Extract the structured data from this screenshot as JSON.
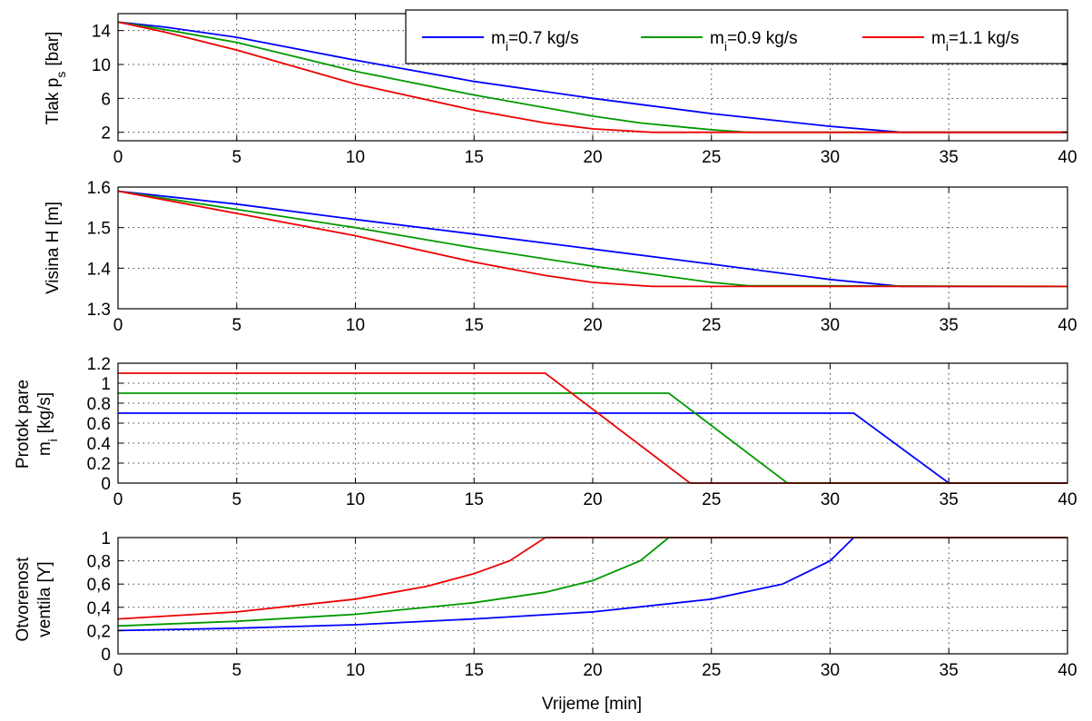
{
  "colors": {
    "blue": "#0000ff",
    "green": "#009900",
    "red": "#ee0000"
  },
  "chart_data": [
    {
      "type": "line",
      "ylabel": "Tlak p",
      "ylabel_sub": "s",
      "ylabel_unit": "[bar]",
      "xlim": [
        0,
        40
      ],
      "ylim": [
        1,
        16
      ],
      "xticks": [
        0,
        5,
        10,
        15,
        20,
        25,
        30,
        35,
        40
      ],
      "yticks": [
        2,
        6,
        10,
        14
      ],
      "yticklabels": [
        "2",
        "6",
        "10",
        "14"
      ],
      "grid": true,
      "legend": {
        "placement": "top-right",
        "entries": [
          {
            "prefix": "m",
            "sub": "i",
            "text": "=0.7 kg/s",
            "color": "#0000ff"
          },
          {
            "prefix": "m",
            "sub": "i",
            "text": "=0.9 kg/s",
            "color": "#009900"
          },
          {
            "prefix": "m",
            "sub": "i",
            "text": "=1.1 kg/s",
            "color": "#ee0000"
          }
        ]
      },
      "series": [
        {
          "name": "mi=0.7 kg/s",
          "color": "#0000ff",
          "x": [
            0,
            2,
            5,
            10,
            15,
            20,
            25,
            30,
            33,
            40
          ],
          "y": [
            15,
            14.4,
            13.2,
            10.5,
            8,
            6,
            4.2,
            2.7,
            2,
            2
          ]
        },
        {
          "name": "mi=0.9 kg/s",
          "color": "#009900",
          "x": [
            0,
            2,
            5,
            10,
            15,
            20,
            22,
            25,
            26.5,
            40
          ],
          "y": [
            15,
            14.1,
            12.6,
            9.2,
            6.4,
            3.9,
            3.1,
            2.3,
            2,
            2
          ]
        },
        {
          "name": "mi=1.1 kg/s",
          "color": "#ee0000",
          "x": [
            0,
            2,
            5,
            10,
            15,
            18,
            20,
            22.5,
            40
          ],
          "y": [
            15,
            13.8,
            11.7,
            7.7,
            4.6,
            3.1,
            2.4,
            2,
            2
          ]
        }
      ]
    },
    {
      "type": "line",
      "ylabel": "Visina H [m]",
      "xlim": [
        0,
        40
      ],
      "ylim": [
        1.3,
        1.6
      ],
      "xticks": [
        0,
        5,
        10,
        15,
        20,
        25,
        30,
        35,
        40
      ],
      "yticks": [
        1.3,
        1.4,
        1.5,
        1.6
      ],
      "yticklabels": [
        "1.3",
        "1.4",
        "1.5",
        "1.6"
      ],
      "grid": true,
      "series": [
        {
          "name": "mi=0.7 kg/s",
          "color": "#0000ff",
          "x": [
            0,
            5,
            10,
            15,
            20,
            25,
            30,
            33,
            40
          ],
          "y": [
            1.59,
            1.558,
            1.52,
            1.484,
            1.447,
            1.41,
            1.372,
            1.355,
            1.355
          ]
        },
        {
          "name": "mi=0.9 kg/s",
          "color": "#009900",
          "x": [
            0,
            5,
            10,
            15,
            20,
            25,
            26.5,
            40
          ],
          "y": [
            1.59,
            1.545,
            1.5,
            1.45,
            1.405,
            1.365,
            1.357,
            1.355
          ]
        },
        {
          "name": "mi=1.1 kg/s",
          "color": "#ee0000",
          "x": [
            0,
            5,
            10,
            15,
            18,
            20,
            22.5,
            25,
            40
          ],
          "y": [
            1.59,
            1.535,
            1.48,
            1.415,
            1.382,
            1.365,
            1.355,
            1.355,
            1.355
          ]
        }
      ]
    },
    {
      "type": "line",
      "ylabel": "Protok pare",
      "ylabel2_prefix": "m",
      "ylabel2_sub": "i",
      "ylabel2_unit": "[kg/s]",
      "xlim": [
        0,
        40
      ],
      "ylim": [
        0,
        1.2
      ],
      "xticks": [
        0,
        5,
        10,
        15,
        20,
        25,
        30,
        35,
        40
      ],
      "yticks": [
        0,
        0.2,
        0.4,
        0.6,
        0.8,
        1,
        1.2
      ],
      "yticklabels": [
        "0",
        "0.2",
        "0.4",
        "0.6",
        "0.8",
        "1",
        "1.2"
      ],
      "grid": true,
      "series": [
        {
          "name": "mi=0.7 kg/s",
          "color": "#0000ff",
          "x": [
            0,
            31,
            35,
            40
          ],
          "y": [
            0.7,
            0.7,
            0,
            0
          ]
        },
        {
          "name": "mi=0.9 kg/s",
          "color": "#009900",
          "x": [
            0,
            23.2,
            28.2,
            40
          ],
          "y": [
            0.9,
            0.9,
            0,
            0
          ]
        },
        {
          "name": "mi=1.1 kg/s",
          "color": "#ee0000",
          "x": [
            0,
            18,
            24.1,
            40
          ],
          "y": [
            1.1,
            1.1,
            0,
            0
          ]
        }
      ]
    },
    {
      "type": "line",
      "ylabel": "Otvorenost",
      "ylabel2": "ventila [Y]",
      "xlabel": "Vrijeme [min]",
      "xlim": [
        0,
        40
      ],
      "ylim": [
        0,
        1
      ],
      "xticks": [
        0,
        5,
        10,
        15,
        20,
        25,
        30,
        35,
        40
      ],
      "yticks": [
        0,
        0.2,
        0.4,
        0.6,
        0.8,
        1
      ],
      "yticklabels": [
        "0",
        "0,2",
        "0,4",
        "0,6",
        "0,8",
        "1"
      ],
      "grid": true,
      "series": [
        {
          "name": "mi=0.7 kg/s",
          "color": "#0000ff",
          "x": [
            0,
            5,
            10,
            15,
            20,
            25,
            28,
            30,
            31,
            40
          ],
          "y": [
            0.2,
            0.22,
            0.25,
            0.3,
            0.36,
            0.47,
            0.6,
            0.8,
            1,
            1
          ]
        },
        {
          "name": "mi=0.9 kg/s",
          "color": "#009900",
          "x": [
            0,
            5,
            10,
            15,
            18,
            20,
            22,
            23.2,
            40
          ],
          "y": [
            0.24,
            0.28,
            0.34,
            0.44,
            0.53,
            0.63,
            0.8,
            1,
            1
          ]
        },
        {
          "name": "mi=1.1 kg/s",
          "color": "#ee0000",
          "x": [
            0,
            5,
            10,
            13,
            15,
            16.5,
            18,
            40
          ],
          "y": [
            0.3,
            0.36,
            0.47,
            0.58,
            0.69,
            0.8,
            1,
            1
          ]
        }
      ]
    }
  ]
}
